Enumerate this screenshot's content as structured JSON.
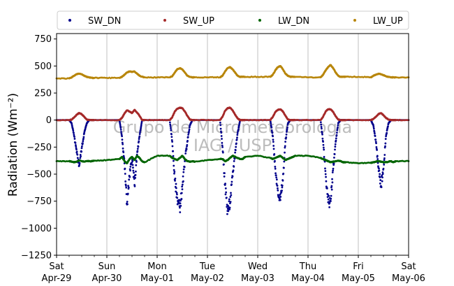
{
  "chart_data": {
    "type": "scatter",
    "title": "",
    "ylabel": "Radiation (Wm⁻²)",
    "xlabel": "",
    "ylim": [
      -1250,
      800
    ],
    "yticks": [
      750,
      500,
      250,
      0,
      -250,
      -500,
      -750,
      -1000,
      -1250
    ],
    "xlim": [
      0,
      7
    ],
    "xticks": [
      {
        "x": 0,
        "day": "Sat",
        "date": "Apr-29"
      },
      {
        "x": 1,
        "day": "Sun",
        "date": "Apr-30"
      },
      {
        "x": 2,
        "day": "Mon",
        "date": "May-01"
      },
      {
        "x": 3,
        "day": "Tue",
        "date": "May-02"
      },
      {
        "x": 4,
        "day": "Wed",
        "date": "May-03"
      },
      {
        "x": 5,
        "day": "Thu",
        "date": "May-04"
      },
      {
        "x": 6,
        "day": "Fri",
        "date": "May-05"
      },
      {
        "x": 7,
        "day": "Sat",
        "date": "May-06"
      }
    ],
    "grid": "vertical",
    "legend_position": "top",
    "watermark": [
      "Grupo de Micrometeorologia",
      "IAG / USP"
    ],
    "series": [
      {
        "name": "SW_DN",
        "color": "#00008b",
        "x": [
          0.0,
          0.25,
          0.3,
          0.35,
          0.4,
          0.45,
          0.5,
          0.55,
          0.6,
          0.65,
          0.7,
          0.75,
          1.0,
          1.25,
          1.3,
          1.35,
          1.4,
          1.45,
          1.5,
          1.55,
          1.6,
          1.65,
          1.7,
          1.75,
          2.0,
          2.25,
          2.3,
          2.35,
          2.4,
          2.45,
          2.5,
          2.55,
          2.6,
          2.65,
          2.7,
          2.75,
          3.0,
          3.25,
          3.3,
          3.35,
          3.4,
          3.45,
          3.5,
          3.55,
          3.6,
          3.65,
          3.7,
          3.75,
          4.0,
          4.25,
          4.3,
          4.35,
          4.4,
          4.45,
          4.5,
          4.55,
          4.6,
          4.65,
          4.7,
          4.75,
          5.0,
          5.25,
          5.3,
          5.35,
          5.4,
          5.45,
          5.5,
          5.55,
          5.6,
          5.65,
          5.7,
          5.75,
          6.0,
          6.25,
          6.3,
          6.35,
          6.4,
          6.45,
          6.5,
          6.55,
          6.6,
          6.65,
          6.7,
          6.75,
          7.0
        ],
        "y": [
          0,
          0,
          -30,
          -150,
          -300,
          -420,
          -260,
          -120,
          -30,
          0,
          0,
          0,
          0,
          0,
          -150,
          -400,
          -780,
          -520,
          -350,
          -600,
          -320,
          -150,
          0,
          0,
          0,
          0,
          -200,
          -550,
          -720,
          -810,
          -640,
          -380,
          -200,
          -50,
          0,
          0,
          0,
          0,
          -250,
          -600,
          -840,
          -770,
          -520,
          -300,
          -120,
          0,
          0,
          0,
          0,
          0,
          -150,
          -450,
          -650,
          -740,
          -560,
          -200,
          -30,
          0,
          0,
          0,
          0,
          0,
          -200,
          -500,
          -760,
          -750,
          -450,
          -200,
          -30,
          0,
          0,
          0,
          0,
          0,
          -50,
          -200,
          -440,
          -610,
          -450,
          -150,
          -30,
          0,
          0,
          0,
          0
        ]
      },
      {
        "name": "SW_UP",
        "color": "#a52a2a",
        "x": [
          0.0,
          0.25,
          0.3,
          0.35,
          0.4,
          0.45,
          0.5,
          0.55,
          0.6,
          0.65,
          0.7,
          0.75,
          1.0,
          1.25,
          1.3,
          1.35,
          1.4,
          1.45,
          1.5,
          1.55,
          1.6,
          1.65,
          1.7,
          1.75,
          2.0,
          2.25,
          2.3,
          2.35,
          2.4,
          2.45,
          2.5,
          2.55,
          2.6,
          2.65,
          2.7,
          2.75,
          3.0,
          3.25,
          3.3,
          3.35,
          3.4,
          3.45,
          3.5,
          3.55,
          3.6,
          3.65,
          3.7,
          3.75,
          4.0,
          4.25,
          4.3,
          4.35,
          4.4,
          4.45,
          4.5,
          4.55,
          4.6,
          4.65,
          4.7,
          4.75,
          5.0,
          5.25,
          5.3,
          5.35,
          5.4,
          5.45,
          5.5,
          5.55,
          5.6,
          5.65,
          5.7,
          5.75,
          6.0,
          6.25,
          6.3,
          6.35,
          6.4,
          6.45,
          6.5,
          6.55,
          6.6,
          6.65,
          6.7,
          6.75,
          7.0
        ],
        "y": [
          0,
          0,
          5,
          25,
          50,
          65,
          55,
          30,
          5,
          0,
          0,
          0,
          0,
          0,
          20,
          60,
          90,
          80,
          65,
          95,
          70,
          40,
          0,
          0,
          0,
          0,
          25,
          80,
          105,
          115,
          110,
          80,
          40,
          5,
          0,
          0,
          0,
          0,
          30,
          85,
          110,
          115,
          90,
          50,
          15,
          0,
          0,
          0,
          0,
          0,
          30,
          75,
          95,
          100,
          80,
          40,
          5,
          0,
          0,
          0,
          0,
          0,
          30,
          80,
          100,
          100,
          75,
          35,
          5,
          0,
          0,
          0,
          0,
          0,
          10,
          30,
          55,
          65,
          45,
          20,
          5,
          0,
          0,
          0,
          0
        ]
      },
      {
        "name": "LW_DN",
        "color": "#006400",
        "x": [
          0.0,
          0.25,
          0.3,
          0.35,
          0.4,
          0.45,
          0.5,
          0.55,
          0.6,
          0.65,
          0.7,
          0.75,
          1.0,
          1.25,
          1.3,
          1.35,
          1.4,
          1.45,
          1.5,
          1.55,
          1.6,
          1.65,
          1.7,
          1.75,
          2.0,
          2.25,
          2.3,
          2.35,
          2.4,
          2.45,
          2.5,
          2.55,
          2.6,
          2.65,
          2.7,
          2.75,
          3.0,
          3.25,
          3.3,
          3.35,
          3.4,
          3.45,
          3.5,
          3.55,
          3.6,
          3.65,
          3.7,
          3.75,
          4.0,
          4.25,
          4.3,
          4.35,
          4.4,
          4.45,
          4.5,
          4.55,
          4.6,
          4.65,
          4.7,
          4.75,
          5.0,
          5.25,
          5.3,
          5.35,
          5.4,
          5.45,
          5.5,
          5.55,
          5.6,
          5.65,
          5.7,
          5.75,
          6.0,
          6.25,
          6.3,
          6.35,
          6.4,
          6.45,
          6.5,
          6.55,
          6.6,
          6.65,
          6.7,
          6.75,
          7.0
        ],
        "y": [
          -380,
          -380,
          -385,
          -390,
          -385,
          -375,
          -380,
          -385,
          -380,
          -380,
          -380,
          -375,
          -370,
          -360,
          -340,
          -380,
          -400,
          -360,
          -340,
          -370,
          -330,
          -350,
          -380,
          -390,
          -330,
          -330,
          -350,
          -360,
          -370,
          -350,
          -330,
          -360,
          -380,
          -385,
          -380,
          -385,
          -370,
          -360,
          -360,
          -380,
          -370,
          -350,
          -330,
          -340,
          -350,
          -360,
          -360,
          -340,
          -330,
          -350,
          -360,
          -350,
          -340,
          -330,
          -350,
          -370,
          -360,
          -350,
          -340,
          -330,
          -330,
          -350,
          -360,
          -370,
          -380,
          -390,
          -385,
          -380,
          -375,
          -380,
          -390,
          -390,
          -400,
          -395,
          -390,
          -385,
          -380,
          -385,
          -390,
          -390,
          -385,
          -380,
          -390,
          -380,
          -380
        ]
      },
      {
        "name": "LW_UP",
        "color": "#b8860b",
        "x": [
          0.0,
          0.25,
          0.3,
          0.35,
          0.4,
          0.45,
          0.5,
          0.55,
          0.6,
          0.65,
          0.7,
          0.75,
          1.0,
          1.25,
          1.3,
          1.35,
          1.4,
          1.45,
          1.5,
          1.55,
          1.6,
          1.65,
          1.7,
          1.75,
          2.0,
          2.25,
          2.3,
          2.35,
          2.4,
          2.45,
          2.5,
          2.55,
          2.6,
          2.65,
          2.7,
          2.75,
          3.0,
          3.25,
          3.3,
          3.35,
          3.4,
          3.45,
          3.5,
          3.55,
          3.6,
          3.65,
          3.7,
          3.75,
          4.0,
          4.25,
          4.3,
          4.35,
          4.4,
          4.45,
          4.5,
          4.55,
          4.6,
          4.65,
          4.7,
          4.75,
          5.0,
          5.25,
          5.3,
          5.35,
          5.4,
          5.45,
          5.5,
          5.55,
          5.6,
          5.65,
          5.7,
          5.75,
          6.0,
          6.25,
          6.3,
          6.35,
          6.4,
          6.45,
          6.5,
          6.55,
          6.6,
          6.65,
          6.7,
          6.75,
          7.0
        ],
        "y": [
          385,
          385,
          395,
          410,
          425,
          430,
          425,
          410,
          400,
          395,
          390,
          390,
          390,
          390,
          400,
          420,
          440,
          450,
          445,
          450,
          430,
          410,
          400,
          395,
          395,
          395,
          405,
          440,
          470,
          480,
          470,
          440,
          410,
          400,
          395,
          395,
          395,
          395,
          410,
          450,
          480,
          490,
          470,
          440,
          410,
          400,
          400,
          400,
          400,
          400,
          420,
          460,
          490,
          500,
          470,
          430,
          410,
          400,
          400,
          400,
          395,
          395,
          420,
          460,
          490,
          510,
          480,
          440,
          410,
          400,
          400,
          400,
          400,
          395,
          410,
          420,
          430,
          425,
          415,
          405,
          400,
          395,
          395,
          395,
          395
        ]
      }
    ]
  },
  "legend": [
    {
      "label": "SW_DN",
      "color": "#00008b"
    },
    {
      "label": "SW_UP",
      "color": "#a52a2a"
    },
    {
      "label": "LW_DN",
      "color": "#006400"
    },
    {
      "label": "LW_UP",
      "color": "#b8860b"
    }
  ]
}
